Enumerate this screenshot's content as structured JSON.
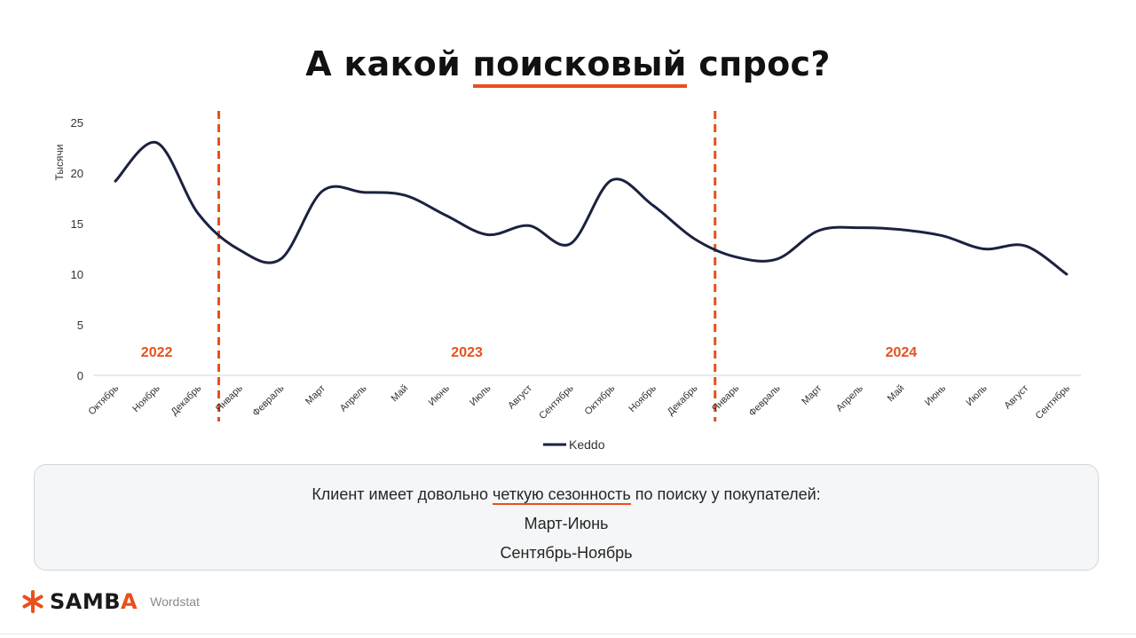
{
  "page": {
    "title_before": "А какой ",
    "title_highlight": "поисковый",
    "title_after": " спрос?",
    "note": {
      "line1_before": "Клиент имеет довольно ",
      "line1_underlined": "четкую сезонность",
      "line1_after": " по поиску у покупателей:",
      "line2": "Март-Июнь",
      "line3": "Сентябрь-Ноябрь"
    },
    "logo": {
      "brand_main": "SAMB",
      "brand_accent": "A",
      "sub": "Wordstat"
    },
    "accent_color": "#e8501c",
    "line_color": "#1b2240"
  },
  "chart_data": {
    "type": "line",
    "ylabel": "Тысячи",
    "xlabel": "",
    "ylim": [
      0,
      25
    ],
    "yticks": [
      0,
      5,
      10,
      15,
      20,
      25
    ],
    "categories": [
      "Октябрь",
      "Ноябрь",
      "Декабрь",
      "Январь",
      "Февраль",
      "Март",
      "Апрель",
      "Май",
      "Июнь",
      "Июль",
      "Август",
      "Сентябрь",
      "Октябрь",
      "Ноябрь",
      "Декабрь",
      "Январь",
      "Февраль",
      "Март",
      "Апрель",
      "Май",
      "Июнь",
      "Июль",
      "Август",
      "Сентябрь"
    ],
    "series": [
      {
        "name": "Keddo",
        "values": [
          19.2,
          23.0,
          16.0,
          12.4,
          11.5,
          18.2,
          18.1,
          17.8,
          15.8,
          13.9,
          14.8,
          13.0,
          19.3,
          16.8,
          13.5,
          11.7,
          11.5,
          14.3,
          14.6,
          14.4,
          13.8,
          12.5,
          12.8,
          10.0
        ]
      }
    ],
    "year_labels": [
      {
        "label": "2022",
        "start": 0,
        "end": 2
      },
      {
        "label": "2023",
        "start": 3,
        "end": 14
      },
      {
        "label": "2024",
        "start": 15,
        "end": 23
      }
    ],
    "dividers_after_index": [
      2,
      14
    ],
    "grid": false,
    "legend": "bottom"
  }
}
